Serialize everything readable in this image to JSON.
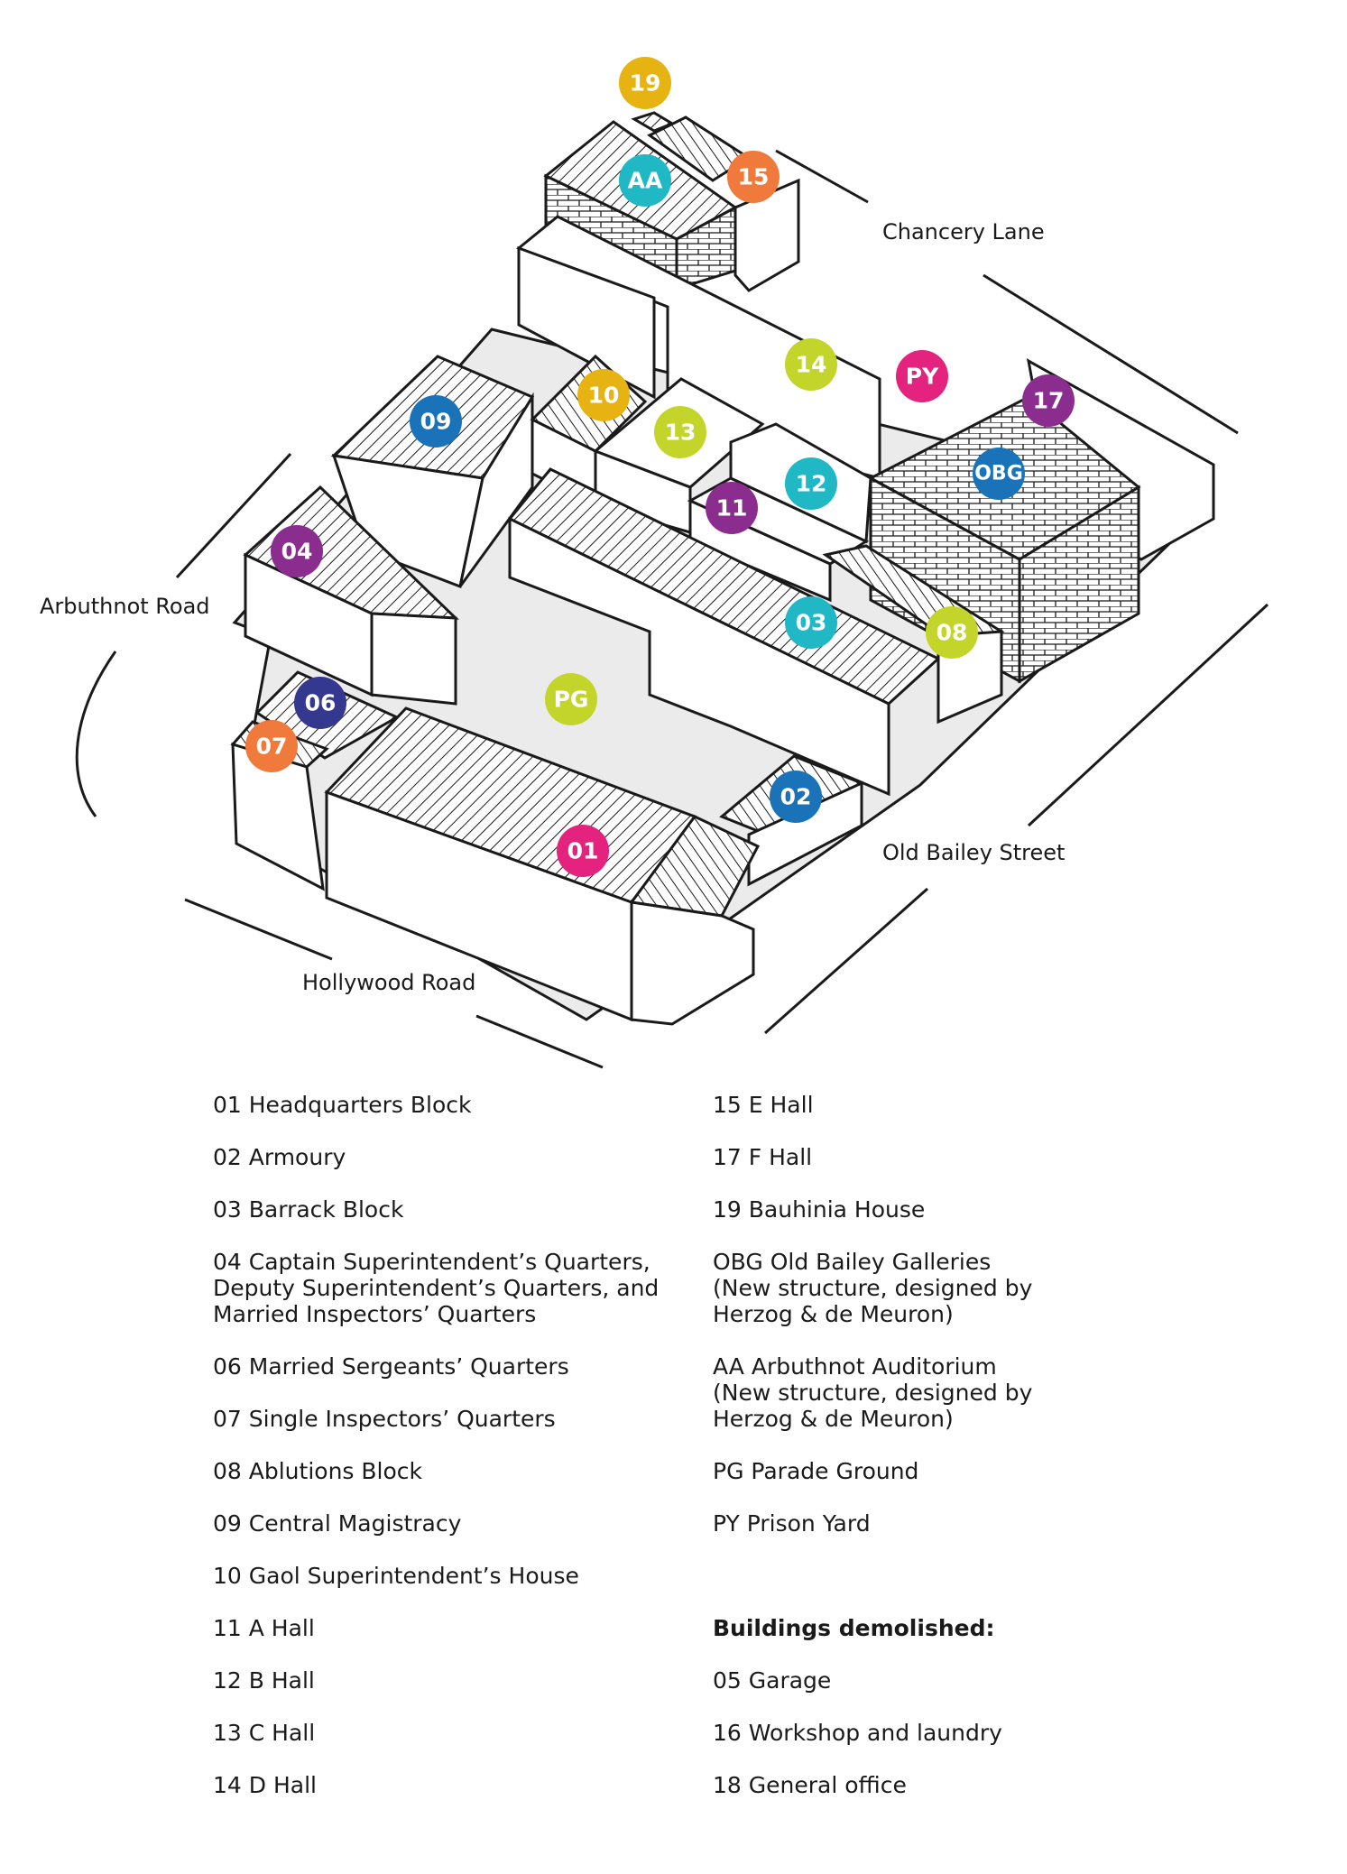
{
  "streets": {
    "chancery": "Chancery Lane",
    "arbuthnot": "Arbuthnot Road",
    "old_bailey": "Old Bailey Street",
    "hollywood": "Hollywood Road"
  },
  "colors": {
    "magenta": "#e4237e",
    "blue": "#1a73b8",
    "teal": "#1fb8c4",
    "purple": "#8a2d8e",
    "navy": "#34398f",
    "orange": "#f07a3b",
    "lime": "#c3d52a",
    "gold": "#e6b312",
    "ground": "#ebebeb",
    "ink": "#1a1a1a"
  },
  "markers": {
    "m01": "01",
    "m02": "02",
    "m03": "03",
    "m04": "04",
    "m06": "06",
    "m07": "07",
    "m08": "08",
    "m09": "09",
    "m10": "10",
    "m11": "11",
    "m12": "12",
    "m13": "13",
    "m14": "14",
    "m15": "15",
    "m17": "17",
    "m19": "19",
    "mAA": "AA",
    "mOBG": "OBG",
    "mPG": "PG",
    "mPY": "PY"
  },
  "legend": {
    "left": [
      "01 Headquarters Block",
      "02 Armoury",
      "03 Barrack Block",
      "04 Captain Superintendent’s Quarters,\nDeputy Superintendent’s Quarters, and\nMarried Inspectors’ Quarters",
      "06 Married Sergeants’ Quarters",
      "07 Single Inspectors’ Quarters",
      "08 Ablutions Block",
      "09 Central Magistracy",
      "10 Gaol Superintendent’s House",
      "11 A Hall",
      "12 B Hall",
      "13 C Hall",
      "14 D Hall"
    ],
    "right": [
      "15 E Hall",
      "17 F Hall",
      "19 Bauhinia House",
      "OBG Old Bailey Galleries\n(New structure, designed by\nHerzog & de Meuron)",
      "AA Arbuthnot Auditorium\n(New structure, designed by\nHerzog & de Meuron)",
      "PG Parade Ground",
      "PY Prison Yard"
    ],
    "demolished_heading": "Buildings demolished:",
    "demolished": [
      "05 Garage",
      "16 Workshop and laundry",
      "18 General office"
    ]
  }
}
